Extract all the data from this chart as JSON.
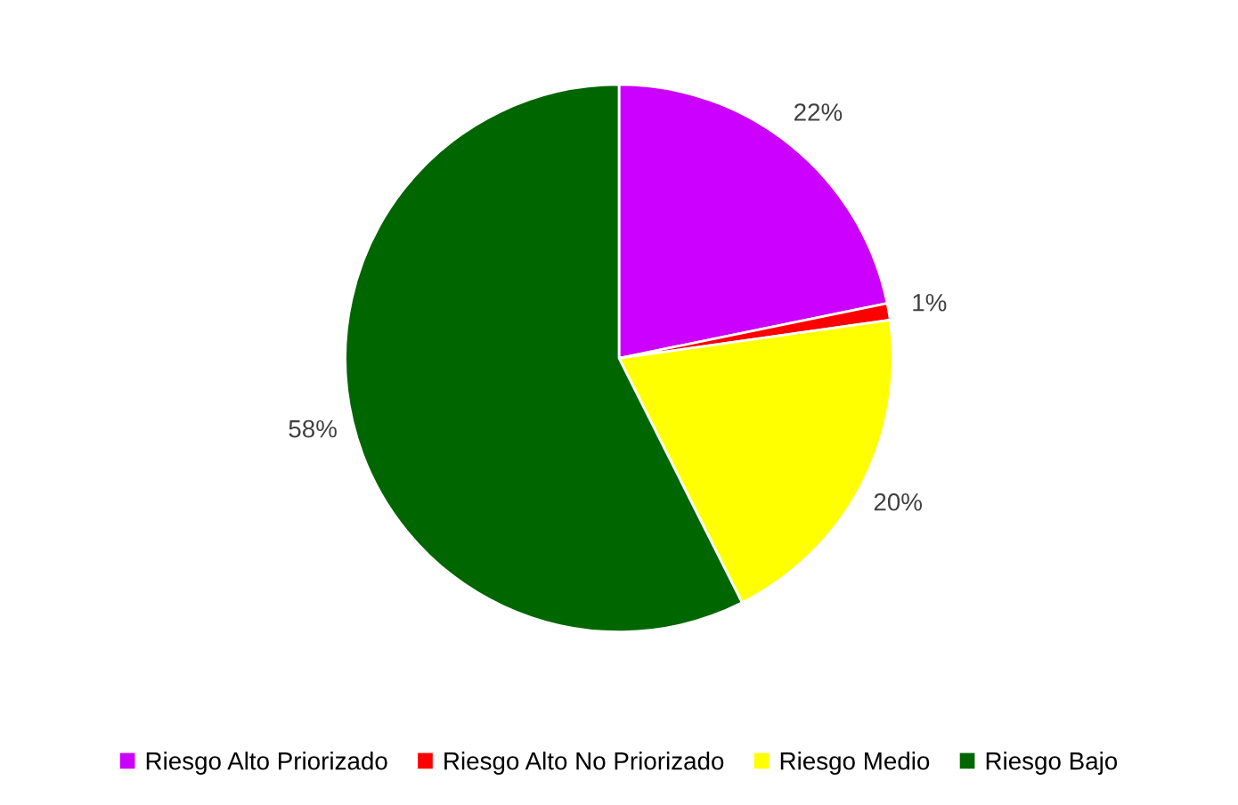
{
  "chart_data": {
    "type": "pie",
    "categories": [
      "Riesgo Alto Priorizado",
      "Riesgo Alto No Priorizado",
      "Riesgo Medio",
      "Riesgo Bajo"
    ],
    "values": [
      22,
      1,
      20,
      58
    ],
    "colors": [
      "#cc00ff",
      "#ff0000",
      "#ffff00",
      "#006600"
    ],
    "value_labels": [
      "22%",
      "1%",
      "20%",
      "58%"
    ],
    "legend": "bottom"
  }
}
